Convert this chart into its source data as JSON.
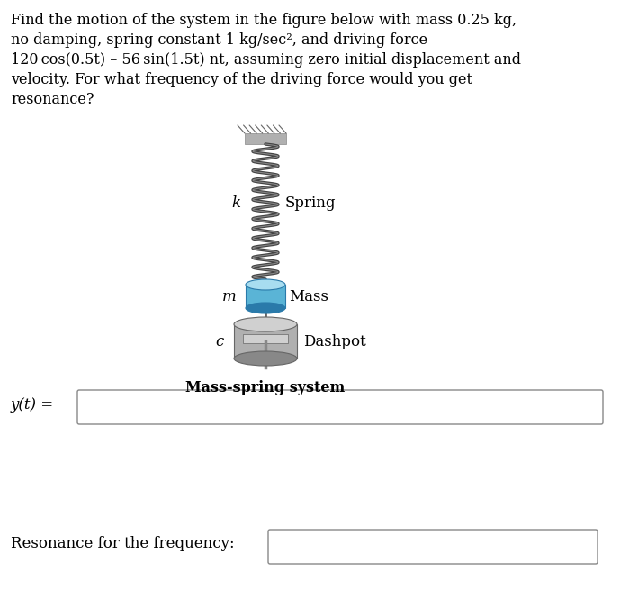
{
  "background_color": "#ffffff",
  "text_color": "#000000",
  "paragraph_lines": [
    "Find the motion of the system in the figure below with mass 0.25 kg,",
    "no damping, spring constant 1 kg/sec², and driving force",
    "120 cos(0.5t) – 56 sin(1.5t) nt, assuming zero initial displacement and",
    "velocity. For what frequency of the driving force would you get",
    "resonance?"
  ],
  "label_k": "k",
  "label_m": "m",
  "label_c": "c",
  "label_spring": "Spring",
  "label_mass": "Mass",
  "label_dashpot": "Dashpot",
  "label_system": "Mass-spring system",
  "label_yt": "y(t) =",
  "label_resonance": "Resonance for the frequency:",
  "fig_width": 7.0,
  "fig_height": 6.55,
  "spring_color": "#444444",
  "spring_highlight": "#888888",
  "mass_color_light": "#a8ddf0",
  "mass_color_mid": "#5ab4d6",
  "mass_color_dark": "#2a7aaa",
  "dashpot_light": "#d0d0d0",
  "dashpot_mid": "#b0b0b0",
  "dashpot_dark": "#888888",
  "dashpot_darker": "#666666",
  "ceiling_color": "#b0b0b0",
  "ceiling_dark": "#888888",
  "input_box_color": "#888888"
}
